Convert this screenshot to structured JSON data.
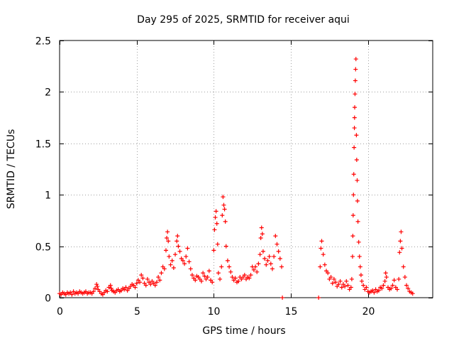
{
  "chart_data": {
    "type": "scatter",
    "title": "Day 295 of 2025, SRMTID for receiver aqui",
    "xlabel": "GPS time / hours",
    "ylabel": "SRMTID / TECUs",
    "xlim": [
      0,
      24.2
    ],
    "ylim": [
      0,
      2.5
    ],
    "grid": true,
    "marker": "+",
    "color": "#ff0000",
    "x_ticks": [
      0,
      5,
      10,
      15,
      20
    ],
    "x_tick_labels": [
      "0",
      "5",
      "10",
      "15",
      "20"
    ],
    "y_ticks": [
      0,
      0.5,
      1,
      1.5,
      2,
      2.5
    ],
    "y_tick_labels": [
      "0",
      "0.5",
      "1",
      "1.5",
      "2",
      "2.5"
    ],
    "series": [
      {
        "name": "SRMTID",
        "points": [
          [
            0.0,
            0.04
          ],
          [
            0.1,
            0.03
          ],
          [
            0.2,
            0.05
          ],
          [
            0.3,
            0.04
          ],
          [
            0.4,
            0.03
          ],
          [
            0.5,
            0.05
          ],
          [
            0.6,
            0.04
          ],
          [
            0.7,
            0.05
          ],
          [
            0.8,
            0.03
          ],
          [
            0.9,
            0.06
          ],
          [
            1.0,
            0.04
          ],
          [
            1.1,
            0.05
          ],
          [
            1.2,
            0.04
          ],
          [
            1.3,
            0.06
          ],
          [
            1.4,
            0.05
          ],
          [
            1.5,
            0.04
          ],
          [
            1.6,
            0.05
          ],
          [
            1.7,
            0.06
          ],
          [
            1.8,
            0.04
          ],
          [
            1.9,
            0.05
          ],
          [
            2.0,
            0.05
          ],
          [
            2.1,
            0.04
          ],
          [
            2.2,
            0.06
          ],
          [
            2.3,
            0.09
          ],
          [
            2.4,
            0.13
          ],
          [
            2.45,
            0.11
          ],
          [
            2.5,
            0.08
          ],
          [
            2.6,
            0.06
          ],
          [
            2.7,
            0.04
          ],
          [
            2.8,
            0.03
          ],
          [
            2.9,
            0.05
          ],
          [
            3.0,
            0.07
          ],
          [
            3.1,
            0.06
          ],
          [
            3.2,
            0.1
          ],
          [
            3.3,
            0.12
          ],
          [
            3.35,
            0.09
          ],
          [
            3.4,
            0.07
          ],
          [
            3.5,
            0.06
          ],
          [
            3.6,
            0.05
          ],
          [
            3.7,
            0.07
          ],
          [
            3.8,
            0.08
          ],
          [
            3.9,
            0.06
          ],
          [
            4.0,
            0.07
          ],
          [
            4.1,
            0.09
          ],
          [
            4.2,
            0.08
          ],
          [
            4.3,
            0.1
          ],
          [
            4.4,
            0.07
          ],
          [
            4.5,
            0.09
          ],
          [
            4.6,
            0.11
          ],
          [
            4.7,
            0.13
          ],
          [
            4.8,
            0.12
          ],
          [
            4.9,
            0.1
          ],
          [
            5.0,
            0.14
          ],
          [
            5.1,
            0.17
          ],
          [
            5.2,
            0.15
          ],
          [
            5.3,
            0.22
          ],
          [
            5.4,
            0.19
          ],
          [
            5.5,
            0.14
          ],
          [
            5.6,
            0.12
          ],
          [
            5.7,
            0.18
          ],
          [
            5.8,
            0.15
          ],
          [
            5.9,
            0.13
          ],
          [
            6.0,
            0.16
          ],
          [
            6.1,
            0.14
          ],
          [
            6.2,
            0.12
          ],
          [
            6.3,
            0.15
          ],
          [
            6.4,
            0.2
          ],
          [
            6.5,
            0.17
          ],
          [
            6.6,
            0.24
          ],
          [
            6.7,
            0.3
          ],
          [
            6.8,
            0.28
          ],
          [
            6.9,
            0.46
          ],
          [
            6.95,
            0.58
          ],
          [
            7.0,
            0.64
          ],
          [
            7.05,
            0.55
          ],
          [
            7.1,
            0.4
          ],
          [
            7.2,
            0.32
          ],
          [
            7.3,
            0.36
          ],
          [
            7.4,
            0.29
          ],
          [
            7.5,
            0.42
          ],
          [
            7.6,
            0.55
          ],
          [
            7.65,
            0.6
          ],
          [
            7.7,
            0.5
          ],
          [
            7.8,
            0.45
          ],
          [
            7.9,
            0.38
          ],
          [
            8.0,
            0.36
          ],
          [
            8.1,
            0.33
          ],
          [
            8.2,
            0.4
          ],
          [
            8.3,
            0.48
          ],
          [
            8.4,
            0.35
          ],
          [
            8.5,
            0.28
          ],
          [
            8.6,
            0.22
          ],
          [
            8.7,
            0.19
          ],
          [
            8.8,
            0.17
          ],
          [
            8.9,
            0.21
          ],
          [
            9.0,
            0.2
          ],
          [
            9.1,
            0.18
          ],
          [
            9.2,
            0.16
          ],
          [
            9.3,
            0.24
          ],
          [
            9.4,
            0.21
          ],
          [
            9.5,
            0.18
          ],
          [
            9.6,
            0.2
          ],
          [
            9.7,
            0.26
          ],
          [
            9.8,
            0.17
          ],
          [
            9.9,
            0.15
          ],
          [
            10.0,
            0.46
          ],
          [
            10.05,
            0.66
          ],
          [
            10.1,
            0.78
          ],
          [
            10.15,
            0.84
          ],
          [
            10.2,
            0.72
          ],
          [
            10.25,
            0.52
          ],
          [
            10.3,
            0.24
          ],
          [
            10.4,
            0.18
          ],
          [
            10.5,
            0.3
          ],
          [
            10.55,
            0.8
          ],
          [
            10.6,
            0.98
          ],
          [
            10.65,
            0.9
          ],
          [
            10.7,
            0.86
          ],
          [
            10.75,
            0.74
          ],
          [
            10.8,
            0.5
          ],
          [
            10.9,
            0.36
          ],
          [
            11.0,
            0.3
          ],
          [
            11.1,
            0.25
          ],
          [
            11.2,
            0.2
          ],
          [
            11.3,
            0.17
          ],
          [
            11.4,
            0.19
          ],
          [
            11.5,
            0.15
          ],
          [
            11.6,
            0.16
          ],
          [
            11.7,
            0.2
          ],
          [
            11.8,
            0.18
          ],
          [
            11.9,
            0.2
          ],
          [
            12.0,
            0.22
          ],
          [
            12.1,
            0.18
          ],
          [
            12.2,
            0.2
          ],
          [
            12.3,
            0.19
          ],
          [
            12.4,
            0.22
          ],
          [
            12.5,
            0.3
          ],
          [
            12.6,
            0.27
          ],
          [
            12.7,
            0.3
          ],
          [
            12.8,
            0.25
          ],
          [
            12.9,
            0.33
          ],
          [
            13.0,
            0.42
          ],
          [
            13.05,
            0.58
          ],
          [
            13.1,
            0.68
          ],
          [
            13.15,
            0.62
          ],
          [
            13.2,
            0.45
          ],
          [
            13.3,
            0.38
          ],
          [
            13.4,
            0.32
          ],
          [
            13.5,
            0.36
          ],
          [
            13.6,
            0.4
          ],
          [
            13.7,
            0.33
          ],
          [
            13.8,
            0.28
          ],
          [
            13.9,
            0.4
          ],
          [
            14.0,
            0.6
          ],
          [
            14.1,
            0.52
          ],
          [
            14.2,
            0.45
          ],
          [
            14.3,
            0.38
          ],
          [
            14.4,
            0.3
          ],
          [
            14.45,
            0.0
          ],
          [
            16.8,
            0.0
          ],
          [
            16.9,
            0.3
          ],
          [
            16.95,
            0.48
          ],
          [
            17.0,
            0.55
          ],
          [
            17.1,
            0.42
          ],
          [
            17.2,
            0.32
          ],
          [
            17.3,
            0.26
          ],
          [
            17.4,
            0.24
          ],
          [
            17.5,
            0.18
          ],
          [
            17.6,
            0.2
          ],
          [
            17.7,
            0.14
          ],
          [
            17.8,
            0.18
          ],
          [
            17.9,
            0.15
          ],
          [
            18.0,
            0.11
          ],
          [
            18.1,
            0.13
          ],
          [
            18.2,
            0.16
          ],
          [
            18.3,
            0.1
          ],
          [
            18.4,
            0.13
          ],
          [
            18.5,
            0.11
          ],
          [
            18.6,
            0.16
          ],
          [
            18.7,
            0.12
          ],
          [
            18.8,
            0.08
          ],
          [
            18.9,
            0.1
          ],
          [
            18.95,
            0.18
          ],
          [
            19.0,
            0.4
          ],
          [
            19.02,
            0.6
          ],
          [
            19.04,
            0.8
          ],
          [
            19.06,
            1.0
          ],
          [
            19.08,
            1.2
          ],
          [
            19.1,
            1.46
          ],
          [
            19.12,
            1.65
          ],
          [
            19.13,
            1.75
          ],
          [
            19.14,
            1.85
          ],
          [
            19.16,
            1.98
          ],
          [
            19.18,
            2.11
          ],
          [
            19.2,
            2.22
          ],
          [
            19.22,
            2.32
          ],
          [
            19.25,
            1.58
          ],
          [
            19.27,
            1.34
          ],
          [
            19.3,
            1.14
          ],
          [
            19.32,
            0.94
          ],
          [
            19.35,
            0.74
          ],
          [
            19.4,
            0.54
          ],
          [
            19.45,
            0.4
          ],
          [
            19.5,
            0.3
          ],
          [
            19.55,
            0.22
          ],
          [
            19.6,
            0.16
          ],
          [
            19.7,
            0.12
          ],
          [
            19.8,
            0.08
          ],
          [
            19.9,
            0.1
          ],
          [
            20.0,
            0.06
          ],
          [
            20.1,
            0.05
          ],
          [
            20.2,
            0.06
          ],
          [
            20.3,
            0.07
          ],
          [
            20.4,
            0.05
          ],
          [
            20.5,
            0.08
          ],
          [
            20.6,
            0.06
          ],
          [
            20.7,
            0.07
          ],
          [
            20.8,
            0.1
          ],
          [
            20.9,
            0.09
          ],
          [
            21.0,
            0.12
          ],
          [
            21.1,
            0.16
          ],
          [
            21.15,
            0.24
          ],
          [
            21.2,
            0.2
          ],
          [
            21.3,
            0.1
          ],
          [
            21.4,
            0.08
          ],
          [
            21.5,
            0.09
          ],
          [
            21.6,
            0.12
          ],
          [
            21.7,
            0.17
          ],
          [
            21.8,
            0.1
          ],
          [
            21.9,
            0.08
          ],
          [
            22.0,
            0.18
          ],
          [
            22.05,
            0.44
          ],
          [
            22.1,
            0.55
          ],
          [
            22.15,
            0.64
          ],
          [
            22.2,
            0.48
          ],
          [
            22.3,
            0.3
          ],
          [
            22.4,
            0.2
          ],
          [
            22.5,
            0.12
          ],
          [
            22.6,
            0.09
          ],
          [
            22.7,
            0.06
          ],
          [
            22.8,
            0.05
          ],
          [
            22.9,
            0.04
          ]
        ]
      }
    ]
  }
}
